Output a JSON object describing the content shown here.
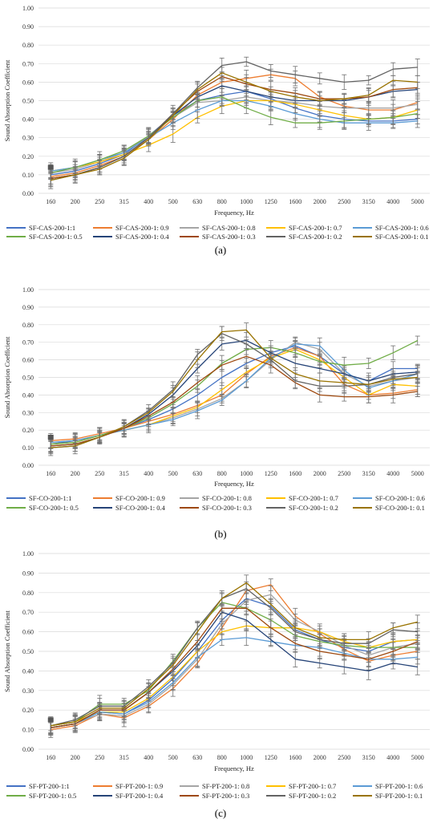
{
  "chart_data": [
    {
      "type": "line",
      "panel_label": "(a)",
      "xlabel": "Frequency, Hz",
      "ylabel": "Sound Absorption Coefficient",
      "ylim": [
        0,
        1
      ],
      "yticks": [
        "0.00",
        "0.10",
        "0.20",
        "0.30",
        "0.40",
        "0.50",
        "0.60",
        "0.70",
        "0.80",
        "0.90",
        "1.00"
      ],
      "categories": [
        "160",
        "200",
        "250",
        "315",
        "400",
        "500",
        "630",
        "800",
        "1000",
        "1250",
        "1600",
        "2000",
        "2500",
        "3150",
        "4000",
        "5000"
      ],
      "grid": true,
      "error_bars": true,
      "legend_position": "bottom",
      "series": [
        {
          "name": "SF-CAS-200-1:1",
          "color": "#4472C4",
          "values": [
            0.1,
            0.12,
            0.16,
            0.21,
            0.31,
            0.42,
            0.5,
            0.53,
            0.55,
            0.51,
            0.46,
            0.42,
            0.4,
            0.39,
            0.39,
            0.4
          ]
        },
        {
          "name": "SF-CAS-200-1: 0.9",
          "color": "#ED7D31",
          "values": [
            0.09,
            0.11,
            0.15,
            0.2,
            0.29,
            0.4,
            0.53,
            0.6,
            0.62,
            0.64,
            0.62,
            0.52,
            0.47,
            0.45,
            0.45,
            0.49
          ]
        },
        {
          "name": "SF-CAS-200-1: 0.8",
          "color": "#A5A5A5",
          "values": [
            0.11,
            0.13,
            0.17,
            0.22,
            0.31,
            0.41,
            0.49,
            0.5,
            0.52,
            0.5,
            0.49,
            0.47,
            0.46,
            0.46,
            0.46,
            0.48
          ]
        },
        {
          "name": "SF-CAS-200-1: 0.7",
          "color": "#FFC000",
          "values": [
            0.12,
            0.14,
            0.17,
            0.21,
            0.26,
            0.32,
            0.41,
            0.47,
            0.5,
            0.5,
            0.48,
            0.45,
            0.42,
            0.4,
            0.41,
            0.45
          ]
        },
        {
          "name": "SF-CAS-200-1: 0.6",
          "color": "#5B9BD5",
          "values": [
            0.12,
            0.14,
            0.18,
            0.22,
            0.3,
            0.38,
            0.45,
            0.5,
            0.5,
            0.47,
            0.43,
            0.4,
            0.38,
            0.38,
            0.38,
            0.39
          ]
        },
        {
          "name": "SF-CAS-200-1: 0.5",
          "color": "#70AD47",
          "values": [
            0.11,
            0.14,
            0.18,
            0.23,
            0.31,
            0.41,
            0.5,
            0.52,
            0.46,
            0.41,
            0.38,
            0.38,
            0.39,
            0.4,
            0.41,
            0.43
          ]
        },
        {
          "name": "SF-CAS-200-1: 0.4",
          "color": "#264478",
          "values": [
            0.08,
            0.1,
            0.14,
            0.2,
            0.3,
            0.42,
            0.52,
            0.58,
            0.55,
            0.52,
            0.5,
            0.5,
            0.5,
            0.52,
            0.55,
            0.56
          ]
        },
        {
          "name": "SF-CAS-200-1: 0.3",
          "color": "#9E480E",
          "values": [
            0.08,
            0.1,
            0.14,
            0.2,
            0.3,
            0.43,
            0.55,
            0.63,
            0.59,
            0.56,
            0.54,
            0.51,
            0.51,
            0.52,
            0.56,
            0.57
          ]
        },
        {
          "name": "SF-CAS-200-1: 0.2",
          "color": "#636363",
          "values": [
            0.07,
            0.1,
            0.14,
            0.2,
            0.3,
            0.43,
            0.57,
            0.69,
            0.71,
            0.66,
            0.64,
            0.62,
            0.6,
            0.61,
            0.67,
            0.68
          ]
        },
        {
          "name": "SF-CAS-200-1: 0.1",
          "color": "#997300",
          "values": [
            0.07,
            0.1,
            0.13,
            0.19,
            0.29,
            0.42,
            0.56,
            0.65,
            0.6,
            0.55,
            0.52,
            0.5,
            0.51,
            0.53,
            0.61,
            0.6
          ]
        }
      ]
    },
    {
      "type": "line",
      "panel_label": "(b)",
      "xlabel": "Frequency, Hz",
      "ylabel": "Sound Absorption Coefficient",
      "ylim": [
        0,
        1
      ],
      "yticks": [
        "0.00",
        "0.10",
        "0.20",
        "0.30",
        "0.40",
        "0.50",
        "0.60",
        "0.70",
        "0.80",
        "0.90",
        "1.00"
      ],
      "categories": [
        "160",
        "200",
        "250",
        "315",
        "400",
        "500",
        "630",
        "800",
        "1000",
        "1250",
        "1600",
        "2000",
        "2500",
        "3150",
        "4000",
        "5000"
      ],
      "grid": true,
      "error_bars": true,
      "legend_position": "bottom",
      "series": [
        {
          "name": "SF-CO-200-1:1",
          "color": "#4472C4",
          "values": [
            0.12,
            0.14,
            0.17,
            0.21,
            0.26,
            0.32,
            0.4,
            0.5,
            0.58,
            0.64,
            0.68,
            0.62,
            0.52,
            0.48,
            0.55,
            0.55
          ]
        },
        {
          "name": "SF-CO-200-1: 0.9",
          "color": "#ED7D31",
          "values": [
            0.14,
            0.15,
            0.18,
            0.21,
            0.25,
            0.29,
            0.34,
            0.4,
            0.52,
            0.62,
            0.67,
            0.62,
            0.46,
            0.4,
            0.41,
            0.43
          ]
        },
        {
          "name": "SF-CO-200-1: 0.8",
          "color": "#A5A5A5",
          "values": [
            0.13,
            0.14,
            0.17,
            0.2,
            0.23,
            0.27,
            0.32,
            0.38,
            0.48,
            0.6,
            0.7,
            0.66,
            0.52,
            0.45,
            0.48,
            0.5
          ]
        },
        {
          "name": "SF-CO-200-1: 0.7",
          "color": "#FFC000",
          "values": [
            0.12,
            0.13,
            0.17,
            0.2,
            0.23,
            0.28,
            0.33,
            0.43,
            0.53,
            0.61,
            0.66,
            0.6,
            0.5,
            0.4,
            0.46,
            0.45
          ]
        },
        {
          "name": "SF-CO-200-1: 0.6",
          "color": "#5B9BD5",
          "values": [
            0.13,
            0.14,
            0.17,
            0.2,
            0.23,
            0.26,
            0.31,
            0.37,
            0.48,
            0.61,
            0.69,
            0.68,
            0.54,
            0.44,
            0.48,
            0.52
          ]
        },
        {
          "name": "SF-CO-200-1: 0.5",
          "color": "#70AD47",
          "values": [
            0.12,
            0.13,
            0.17,
            0.21,
            0.27,
            0.35,
            0.45,
            0.58,
            0.66,
            0.67,
            0.64,
            0.59,
            0.57,
            0.58,
            0.64,
            0.71
          ]
        },
        {
          "name": "SF-CO-200-1: 0.4",
          "color": "#264478",
          "values": [
            0.11,
            0.12,
            0.16,
            0.21,
            0.29,
            0.4,
            0.55,
            0.69,
            0.71,
            0.64,
            0.58,
            0.55,
            0.52,
            0.48,
            0.52,
            0.53
          ]
        },
        {
          "name": "SF-CO-200-1: 0.3",
          "color": "#9E480E",
          "values": [
            0.11,
            0.12,
            0.16,
            0.21,
            0.28,
            0.36,
            0.47,
            0.57,
            0.62,
            0.57,
            0.47,
            0.4,
            0.39,
            0.39,
            0.4,
            0.42
          ]
        },
        {
          "name": "SF-CO-200-1: 0.2",
          "color": "#636363",
          "values": [
            0.1,
            0.11,
            0.16,
            0.22,
            0.31,
            0.43,
            0.63,
            0.75,
            0.69,
            0.6,
            0.48,
            0.45,
            0.45,
            0.46,
            0.5,
            0.52
          ]
        },
        {
          "name": "SF-CO-200-1: 0.1",
          "color": "#997300",
          "values": [
            0.1,
            0.11,
            0.16,
            0.22,
            0.3,
            0.42,
            0.6,
            0.76,
            0.77,
            0.61,
            0.52,
            0.48,
            0.47,
            0.46,
            0.49,
            0.5
          ]
        }
      ]
    },
    {
      "type": "line",
      "panel_label": "(c)",
      "xlabel": "Frequency, Hz",
      "ylabel": "Sound Absorption Coefficient",
      "ylim": [
        0,
        1
      ],
      "yticks": [
        "0.00",
        "0.10",
        "0.20",
        "0.30",
        "0.40",
        "0.50",
        "0.60",
        "0.70",
        "0.80",
        "0.90",
        "1.00"
      ],
      "categories": [
        "160",
        "200",
        "250",
        "315",
        "400",
        "500",
        "630",
        "800",
        "1000",
        "1250",
        "1600",
        "2000",
        "2500",
        "3150",
        "4000",
        "5000"
      ],
      "grid": true,
      "error_bars": true,
      "legend_position": "bottom",
      "series": [
        {
          "name": "SF-PT-200-1:1",
          "color": "#4472C4",
          "values": [
            0.11,
            0.13,
            0.19,
            0.18,
            0.25,
            0.36,
            0.5,
            0.66,
            0.77,
            0.73,
            0.61,
            0.56,
            0.52,
            0.5,
            0.55,
            0.56
          ]
        },
        {
          "name": "SF-PT-200-1: 0.9",
          "color": "#ED7D31",
          "values": [
            0.1,
            0.12,
            0.18,
            0.16,
            0.22,
            0.31,
            0.44,
            0.62,
            0.81,
            0.84,
            0.68,
            0.59,
            0.51,
            0.45,
            0.48,
            0.5
          ]
        },
        {
          "name": "SF-PT-200-1: 0.8",
          "color": "#A5A5A5",
          "values": [
            0.11,
            0.13,
            0.18,
            0.17,
            0.23,
            0.33,
            0.46,
            0.64,
            0.76,
            0.79,
            0.66,
            0.6,
            0.53,
            0.48,
            0.52,
            0.54
          ]
        },
        {
          "name": "SF-PT-200-1: 0.7",
          "color": "#FFC000",
          "values": [
            0.12,
            0.14,
            0.19,
            0.19,
            0.26,
            0.37,
            0.5,
            0.6,
            0.63,
            0.62,
            0.62,
            0.6,
            0.55,
            0.52,
            0.55,
            0.56
          ]
        },
        {
          "name": "SF-PT-200-1: 0.6",
          "color": "#5B9BD5",
          "values": [
            0.11,
            0.13,
            0.19,
            0.18,
            0.24,
            0.34,
            0.47,
            0.56,
            0.57,
            0.55,
            0.53,
            0.52,
            0.49,
            0.46,
            0.46,
            0.47
          ]
        },
        {
          "name": "SF-PT-200-1: 0.5",
          "color": "#70AD47",
          "values": [
            0.12,
            0.14,
            0.23,
            0.23,
            0.3,
            0.45,
            0.62,
            0.75,
            0.72,
            0.66,
            0.58,
            0.55,
            0.53,
            0.52,
            0.52,
            0.52
          ]
        },
        {
          "name": "SF-PT-200-1: 0.4",
          "color": "#264478",
          "values": [
            0.11,
            0.13,
            0.2,
            0.2,
            0.29,
            0.4,
            0.53,
            0.7,
            0.66,
            0.56,
            0.46,
            0.44,
            0.42,
            0.4,
            0.44,
            0.42
          ]
        },
        {
          "name": "SF-PT-200-1: 0.3",
          "color": "#9E480E",
          "values": [
            0.11,
            0.13,
            0.2,
            0.2,
            0.29,
            0.41,
            0.55,
            0.72,
            0.72,
            0.62,
            0.54,
            0.5,
            0.48,
            0.46,
            0.5,
            0.55
          ]
        },
        {
          "name": "SF-PT-200-1: 0.2",
          "color": "#636363",
          "values": [
            0.12,
            0.15,
            0.22,
            0.22,
            0.32,
            0.44,
            0.62,
            0.77,
            0.82,
            0.72,
            0.6,
            0.56,
            0.54,
            0.54,
            0.61,
            0.6
          ]
        },
        {
          "name": "SF-PT-200-1: 0.1",
          "color": "#997300",
          "values": [
            0.12,
            0.14,
            0.21,
            0.21,
            0.31,
            0.43,
            0.6,
            0.77,
            0.85,
            0.74,
            0.62,
            0.57,
            0.56,
            0.56,
            0.62,
            0.65
          ]
        }
      ]
    }
  ]
}
